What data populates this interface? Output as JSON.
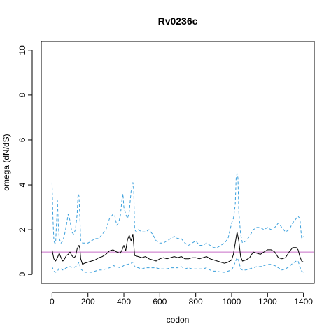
{
  "chart_data": {
    "type": "line",
    "title": "Rv0236c",
    "xlabel": "codon",
    "ylabel": "omega (dN/dS)",
    "xlim": [
      -60,
      1460
    ],
    "ylim": [
      -0.4,
      10.4
    ],
    "xticks": [
      "0",
      "200",
      "400",
      "600",
      "800",
      "1000",
      "1200",
      "1400"
    ],
    "yticks": [
      "0",
      "2",
      "4",
      "6",
      "8",
      "10"
    ],
    "grid": false,
    "reference_line": {
      "y": 1,
      "color": "#c86ec8"
    },
    "series": [
      {
        "role": "estimate",
        "color": "#000000",
        "style": "solid",
        "x": [
          0,
          10,
          20,
          30,
          40,
          50,
          60,
          70,
          80,
          90,
          100,
          110,
          120,
          130,
          140,
          150,
          155,
          160,
          170,
          180,
          200,
          220,
          240,
          260,
          280,
          300,
          320,
          340,
          360,
          380,
          390,
          400,
          410,
          420,
          430,
          440,
          450,
          460,
          480,
          500,
          520,
          540,
          560,
          580,
          600,
          620,
          640,
          660,
          680,
          700,
          720,
          740,
          760,
          780,
          800,
          820,
          840,
          860,
          880,
          900,
          920,
          940,
          960,
          980,
          1000,
          1010,
          1020,
          1030,
          1040,
          1050,
          1060,
          1080,
          1100,
          1120,
          1140,
          1160,
          1180,
          1200,
          1220,
          1240,
          1260,
          1280,
          1300,
          1320,
          1340,
          1360,
          1370,
          1380,
          1390,
          1400
        ],
        "y": [
          1.1,
          0.7,
          0.6,
          0.75,
          0.95,
          0.75,
          0.6,
          0.7,
          0.85,
          0.9,
          1.0,
          0.85,
          0.75,
          0.8,
          1.15,
          1.3,
          1.15,
          0.7,
          0.45,
          0.5,
          0.55,
          0.6,
          0.65,
          0.75,
          0.8,
          0.9,
          1.05,
          1.1,
          1.0,
          0.95,
          1.1,
          1.3,
          1.05,
          1.55,
          1.75,
          1.5,
          1.8,
          0.85,
          0.8,
          0.75,
          0.8,
          0.7,
          0.65,
          0.6,
          0.7,
          0.75,
          0.7,
          0.75,
          0.8,
          0.75,
          0.8,
          0.7,
          0.7,
          0.75,
          0.75,
          0.7,
          0.75,
          0.8,
          0.7,
          0.65,
          0.6,
          0.55,
          0.5,
          0.55,
          0.65,
          0.9,
          1.4,
          1.9,
          1.5,
          0.8,
          0.6,
          0.65,
          0.75,
          1.0,
          0.95,
          0.9,
          1.0,
          1.1,
          1.1,
          1.0,
          0.75,
          0.7,
          0.75,
          1.0,
          1.2,
          1.2,
          1.1,
          0.8,
          0.6,
          0.55
        ]
      },
      {
        "role": "upper-bound",
        "color": "#3ca0dc",
        "style": "dashed",
        "x": [
          0,
          5,
          10,
          15,
          20,
          25,
          30,
          35,
          40,
          45,
          50,
          60,
          70,
          80,
          90,
          100,
          110,
          120,
          130,
          140,
          145,
          150,
          155,
          160,
          170,
          180,
          200,
          220,
          240,
          260,
          280,
          300,
          320,
          330,
          340,
          350,
          360,
          370,
          380,
          390,
          395,
          400,
          410,
          420,
          430,
          440,
          450,
          455,
          460,
          470,
          480,
          500,
          520,
          540,
          560,
          580,
          600,
          620,
          640,
          660,
          680,
          700,
          720,
          740,
          760,
          780,
          800,
          820,
          840,
          860,
          880,
          900,
          920,
          940,
          960,
          980,
          1000,
          1010,
          1020,
          1025,
          1030,
          1035,
          1040,
          1050,
          1060,
          1080,
          1100,
          1120,
          1140,
          1160,
          1180,
          1200,
          1220,
          1240,
          1260,
          1280,
          1300,
          1320,
          1340,
          1360,
          1370,
          1380,
          1390,
          1400
        ],
        "y": [
          4.1,
          2.5,
          1.5,
          1.4,
          1.4,
          2.3,
          3.3,
          2.2,
          1.6,
          1.5,
          1.4,
          1.5,
          1.8,
          2.2,
          2.7,
          2.4,
          1.9,
          1.8,
          2.0,
          2.7,
          3.6,
          3.5,
          2.5,
          1.5,
          1.4,
          1.4,
          1.4,
          1.5,
          1.6,
          1.6,
          1.8,
          2.0,
          2.5,
          2.6,
          2.7,
          2.6,
          2.2,
          2.3,
          2.6,
          3.4,
          3.6,
          3.0,
          2.7,
          2.5,
          2.8,
          3.7,
          4.1,
          3.8,
          2.0,
          1.9,
          2.0,
          1.9,
          1.9,
          2.0,
          1.8,
          1.5,
          1.4,
          1.4,
          1.5,
          1.6,
          1.7,
          1.6,
          1.6,
          1.4,
          1.3,
          1.4,
          1.5,
          1.3,
          1.3,
          1.4,
          1.3,
          1.2,
          1.2,
          1.3,
          1.4,
          1.6,
          2.3,
          2.5,
          3.1,
          4.3,
          4.5,
          4.3,
          2.8,
          1.8,
          1.4,
          1.5,
          1.7,
          2.0,
          2.1,
          2.1,
          2.0,
          2.1,
          2.0,
          2.1,
          2.3,
          2.1,
          1.9,
          2.0,
          2.3,
          2.5,
          2.6,
          2.5,
          1.6,
          1.7
        ]
      },
      {
        "role": "lower-bound",
        "color": "#3ca0dc",
        "style": "dashed",
        "x": [
          0,
          10,
          20,
          30,
          40,
          60,
          80,
          100,
          120,
          140,
          150,
          160,
          180,
          200,
          220,
          240,
          260,
          280,
          300,
          320,
          340,
          360,
          380,
          400,
          420,
          440,
          450,
          460,
          480,
          500,
          520,
          540,
          560,
          580,
          600,
          620,
          640,
          660,
          680,
          700,
          720,
          740,
          760,
          780,
          800,
          820,
          840,
          860,
          880,
          900,
          920,
          940,
          960,
          980,
          1000,
          1010,
          1020,
          1030,
          1040,
          1050,
          1060,
          1080,
          1100,
          1120,
          1140,
          1160,
          1180,
          1200,
          1220,
          1240,
          1260,
          1280,
          1300,
          1320,
          1340,
          1360,
          1370,
          1380,
          1390,
          1400
        ],
        "y": [
          0.35,
          0.15,
          0.1,
          0.15,
          0.3,
          0.2,
          0.3,
          0.35,
          0.3,
          0.4,
          0.55,
          0.25,
          0.1,
          0.1,
          0.1,
          0.15,
          0.2,
          0.2,
          0.25,
          0.3,
          0.4,
          0.35,
          0.3,
          0.4,
          0.45,
          0.5,
          0.55,
          0.35,
          0.3,
          0.25,
          0.3,
          0.3,
          0.3,
          0.3,
          0.25,
          0.25,
          0.25,
          0.3,
          0.3,
          0.3,
          0.35,
          0.25,
          0.3,
          0.25,
          0.25,
          0.25,
          0.25,
          0.3,
          0.2,
          0.15,
          0.15,
          0.1,
          0.1,
          0.15,
          0.2,
          0.35,
          0.55,
          0.75,
          0.6,
          0.25,
          0.2,
          0.2,
          0.25,
          0.3,
          0.35,
          0.35,
          0.4,
          0.45,
          0.45,
          0.4,
          0.3,
          0.2,
          0.25,
          0.35,
          0.5,
          0.6,
          0.6,
          0.35,
          0.15,
          0.1
        ]
      }
    ]
  }
}
